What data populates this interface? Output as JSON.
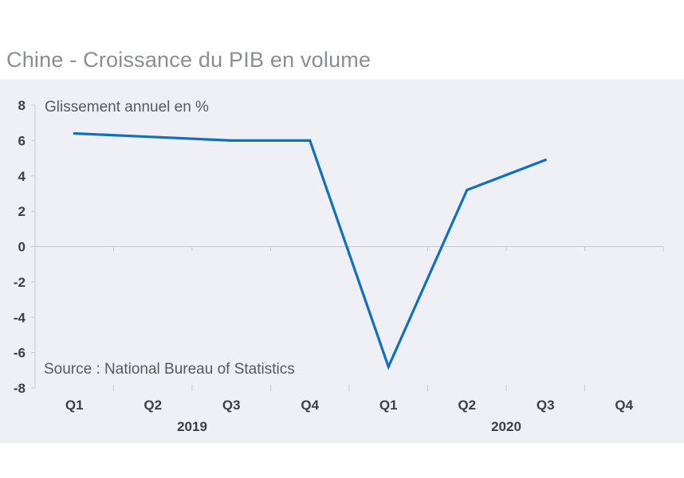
{
  "title": "Chine - Croissance du PIB en volume",
  "chart_data": {
    "type": "line",
    "title": "Chine - Croissance du PIB en volume",
    "ylabel": "Glissement annuel en %",
    "source": "Source : National Bureau of Statistics",
    "categories": [
      "Q1",
      "Q2",
      "Q3",
      "Q4",
      "Q1",
      "Q2",
      "Q3",
      "Q4"
    ],
    "years": [
      {
        "label": "2019",
        "quarters": [
          "Q1",
          "Q2",
          "Q3",
          "Q4"
        ]
      },
      {
        "label": "2020",
        "quarters": [
          "Q1",
          "Q2",
          "Q3",
          "Q4"
        ]
      }
    ],
    "series": [
      {
        "values": [
          6.4,
          6.2,
          6.0,
          6.0,
          -6.8,
          3.2,
          4.9,
          null
        ]
      }
    ],
    "ylim": [
      -8,
      8
    ],
    "yticks": [
      8,
      6,
      4,
      2,
      0,
      -2,
      -4,
      -6,
      -8
    ],
    "grid": false,
    "line_color": "#1070c0",
    "axis_color": "#c4c7cc",
    "text_color": "#3b3e44"
  }
}
